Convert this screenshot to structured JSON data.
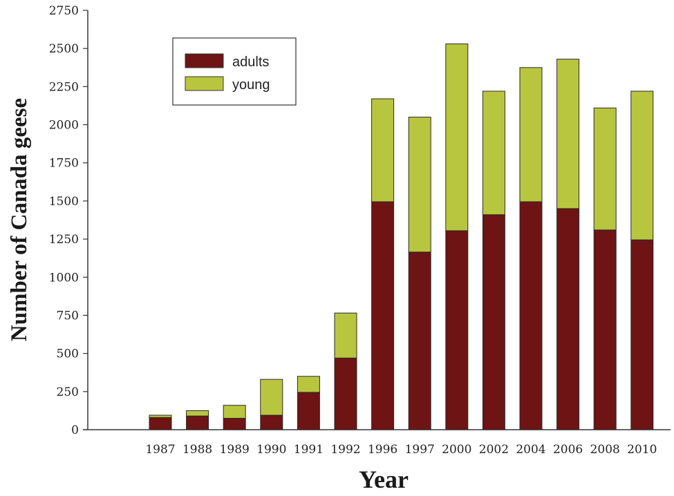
{
  "chart_data": {
    "type": "bar",
    "stacked": true,
    "categories": [
      "1987",
      "1988",
      "1989",
      "1990",
      "1991",
      "1992",
      "1996",
      "1997",
      "2000",
      "2002",
      "2004",
      "2006",
      "2008",
      "2010"
    ],
    "series": [
      {
        "name": "adults",
        "color": "#6e1414",
        "values": [
          80,
          90,
          75,
          95,
          245,
          470,
          1495,
          1165,
          1305,
          1410,
          1495,
          1450,
          1310,
          1245
        ]
      },
      {
        "name": "young",
        "color": "#b8c63f",
        "values": [
          15,
          35,
          85,
          235,
          105,
          295,
          675,
          885,
          1225,
          810,
          880,
          980,
          800,
          975
        ]
      }
    ],
    "xlabel": "Year",
    "ylabel": "Number of Canada geese",
    "ylim": [
      0,
      2750
    ],
    "yticks": [
      "0",
      "250",
      "500",
      "750",
      "1000",
      "1250",
      "1500",
      "1750",
      "2000",
      "2250",
      "2500",
      "2750"
    ],
    "legend": {
      "placement": "top-left",
      "entries": [
        "adults",
        "young"
      ]
    },
    "grid": false
  }
}
